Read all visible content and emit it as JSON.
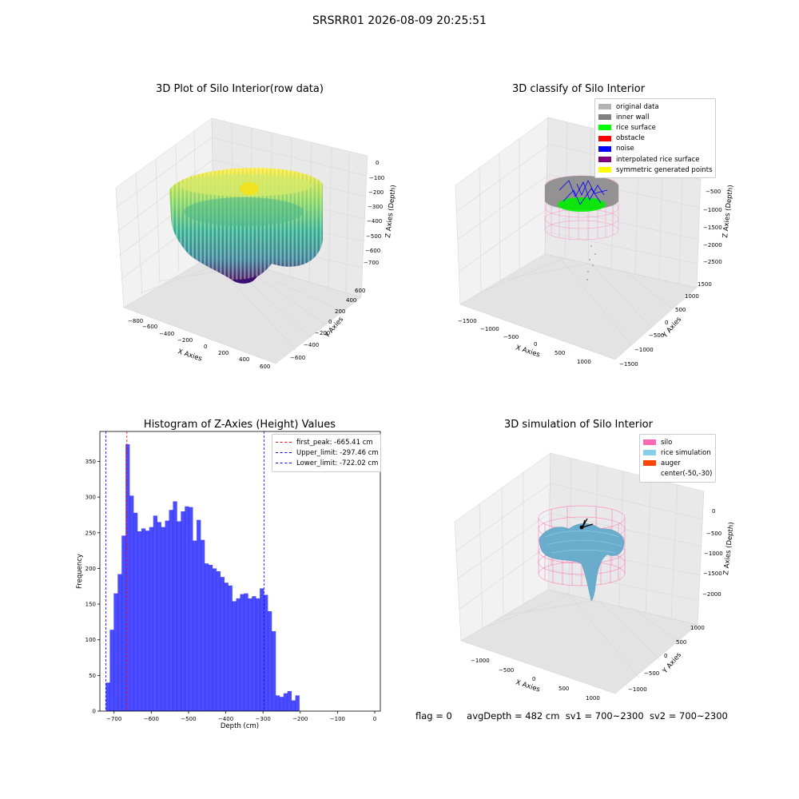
{
  "suptitle": "SRSRR01 2026-08-09 20:25:51",
  "panels": {
    "raw": {
      "title": "3D Plot of Silo Interior(row data)",
      "xlabel": "X Axies",
      "ylabel": "Y Axies",
      "zlabel": "Z Axies (Depth)",
      "xticks": [
        "−800",
        "−600",
        "−400",
        "−200",
        "0",
        "200",
        "400",
        "600"
      ],
      "yticks": [
        "−600",
        "−400",
        "−200",
        "0",
        "200",
        "400",
        "600"
      ],
      "zticks": [
        "0",
        "−100",
        "−200",
        "−300",
        "−400",
        "−500",
        "−600",
        "−700"
      ]
    },
    "classify": {
      "title": "3D classify of Silo Interior",
      "xlabel": "X Axies",
      "ylabel": "Y Axies",
      "zlabel": "Z Axies (Depth)",
      "xticks": [
        "−1500",
        "−1000",
        "−500",
        "0",
        "500",
        "1000"
      ],
      "yticks": [
        "1500",
        "1000",
        "500",
        "0",
        "−500",
        "−1000",
        "−1500"
      ],
      "zticks": [
        "−500",
        "−1000",
        "−1500",
        "−2000",
        "−2500"
      ],
      "legend": [
        {
          "label": "original data",
          "color": "#b3b3b3"
        },
        {
          "label": "inner wall",
          "color": "#808080"
        },
        {
          "label": "rice surface",
          "color": "#00ff00"
        },
        {
          "label": "obstacle",
          "color": "#ff0000"
        },
        {
          "label": "noise",
          "color": "#0000ff"
        },
        {
          "label": "interpolated rice surface",
          "color": "#800080"
        },
        {
          "label": "symmetric generated points",
          "color": "#ffff00"
        }
      ]
    },
    "simulation": {
      "title": "3D simulation of Silo Interior",
      "xlabel": "X Axies",
      "ylabel": "Y Axies",
      "zlabel": "Z Axies (Depth)",
      "xticks": [
        "−1000",
        "−500",
        "0",
        "500",
        "1000"
      ],
      "yticks": [
        "1000",
        "500",
        "0",
        "−500",
        "−1000"
      ],
      "zticks": [
        "0",
        "−500",
        "−1000",
        "−1500",
        "−2000"
      ],
      "legend": [
        {
          "label": "silo",
          "color": "#ff69b4"
        },
        {
          "label": "rice simulation",
          "color": "#87ceeb"
        },
        {
          "label": "auger",
          "color": "#ff4500"
        },
        {
          "label": "center(-50,-30)",
          "color": ""
        }
      ]
    }
  },
  "chart_data": {
    "type": "bar",
    "title": "Histogram of Z-Axies (Height) Values",
    "xlabel": "Depth (cm)",
    "ylabel": "Frequency",
    "xlim": [
      -738,
      15
    ],
    "ylim": [
      0,
      392
    ],
    "xticks": [
      -700,
      -600,
      -500,
      -400,
      -300,
      -200,
      -100,
      0
    ],
    "yticks": [
      0,
      50,
      100,
      150,
      200,
      250,
      300,
      350
    ],
    "bin_start": -722,
    "bin_width": 10.6,
    "values": [
      40,
      114,
      165,
      192,
      246,
      374,
      302,
      278,
      252,
      256,
      253,
      258,
      274,
      265,
      258,
      267,
      282,
      294,
      266,
      280,
      287,
      286,
      239,
      268,
      240,
      207,
      205,
      200,
      196,
      188,
      180,
      176,
      154,
      158,
      164,
      165,
      158,
      161,
      158,
      172,
      163,
      140,
      112,
      22,
      20,
      25,
      28,
      15,
      22
    ],
    "bar_color": "#0000ff",
    "vlines": [
      {
        "label": "first_peak: -665.41 cm",
        "x": -665.41,
        "color": "#ff0000"
      },
      {
        "label": "Upper_limit: -297.46 cm",
        "x": -297.46,
        "color": "#0000ff"
      },
      {
        "label": "Lower_limit: -722.02 cm",
        "x": -722.02,
        "color": "#0000ff"
      }
    ],
    "legend_position": "top-right"
  },
  "footer": {
    "flag": "flag = 0",
    "avg_depth": "avgDepth = 482 cm",
    "sv1": "sv1 = 700~2300",
    "sv2": "sv2 = 700~2300"
  }
}
